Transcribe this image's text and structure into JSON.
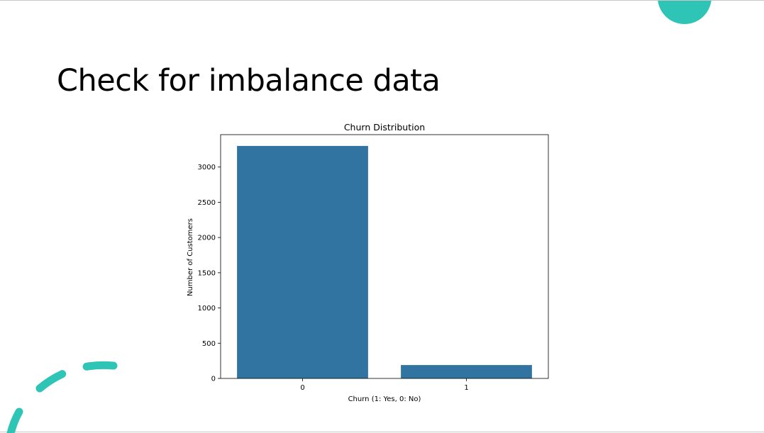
{
  "slide": {
    "title": "Check for imbalance data",
    "accent_color": "#2ec4b6"
  },
  "chart_data": {
    "type": "bar",
    "title": "Churn Distribution",
    "xlabel": "Churn (1: Yes, 0: No)",
    "ylabel": "Number of Customers",
    "categories": [
      "0",
      "1"
    ],
    "values": [
      3300,
      190
    ],
    "ylim": [
      0,
      3460
    ],
    "yticks": [
      0,
      500,
      1000,
      1500,
      2000,
      2500,
      3000
    ],
    "bar_color": "#3274a1",
    "grid": false,
    "legend": "none"
  }
}
